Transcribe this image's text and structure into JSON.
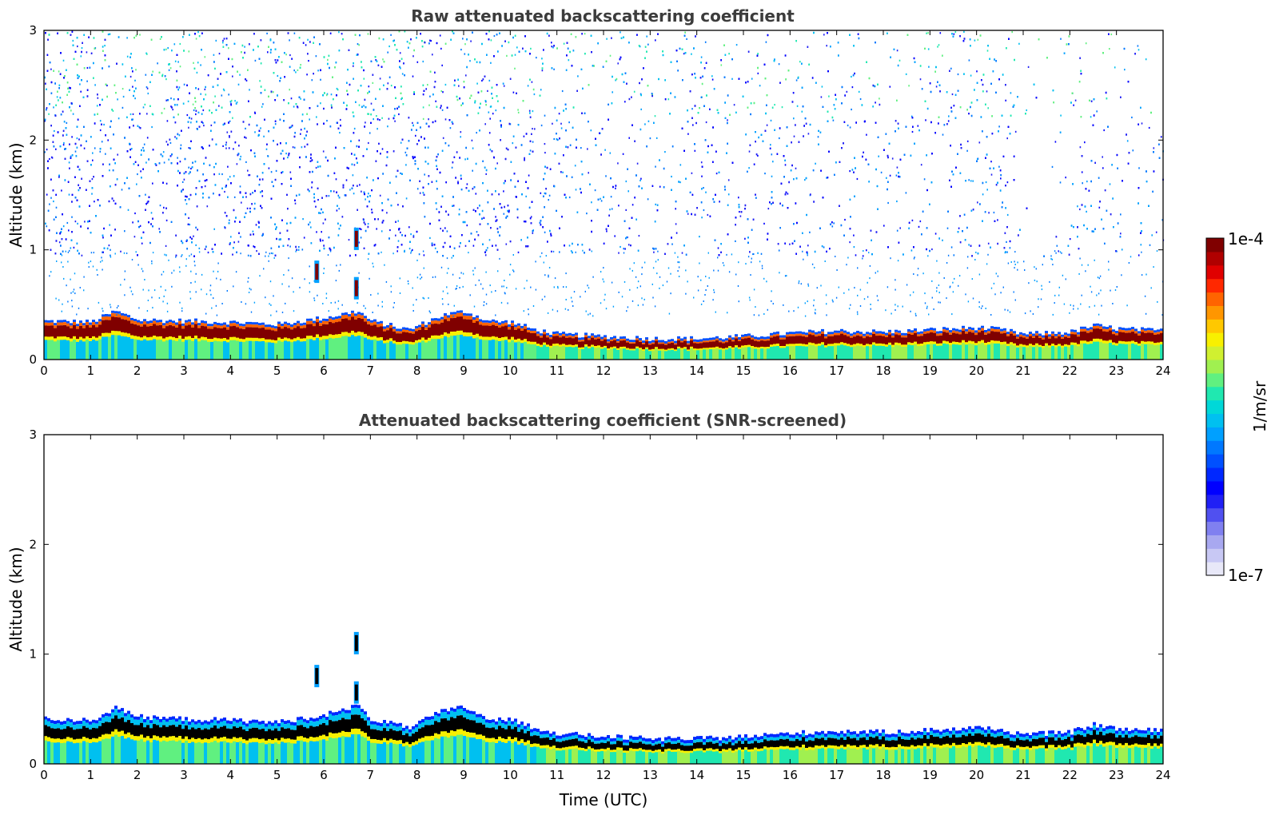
{
  "chart_data": [
    {
      "type": "heatmap",
      "title": "Raw attenuated backscattering coefficient",
      "xlabel": "",
      "ylabel": "Altitude (km)",
      "xlim": [
        0,
        24
      ],
      "ylim": [
        0,
        3
      ],
      "x_ticks": [
        "0",
        "1",
        "2",
        "3",
        "4",
        "5",
        "6",
        "7",
        "8",
        "9",
        "10",
        "11",
        "12",
        "13",
        "14",
        "15",
        "16",
        "17",
        "18",
        "19",
        "20",
        "21",
        "22",
        "23",
        "24"
      ],
      "y_ticks": [
        "0",
        "1",
        "2",
        "3"
      ],
      "variant": "raw",
      "boundary_layer_top_km": [
        {
          "t": 0,
          "h": 0.33
        },
        {
          "t": 1,
          "h": 0.32
        },
        {
          "t": 1.5,
          "h": 0.42
        },
        {
          "t": 2,
          "h": 0.34
        },
        {
          "t": 3,
          "h": 0.33
        },
        {
          "t": 4,
          "h": 0.32
        },
        {
          "t": 5,
          "h": 0.3
        },
        {
          "t": 6,
          "h": 0.36
        },
        {
          "t": 6.7,
          "h": 0.42
        },
        {
          "t": 7,
          "h": 0.33
        },
        {
          "t": 7.8,
          "h": 0.25
        },
        {
          "t": 8.5,
          "h": 0.38
        },
        {
          "t": 9,
          "h": 0.42
        },
        {
          "t": 9.5,
          "h": 0.33
        },
        {
          "t": 10,
          "h": 0.32
        },
        {
          "t": 10.5,
          "h": 0.25
        },
        {
          "t": 11,
          "h": 0.21
        },
        {
          "t": 12,
          "h": 0.19
        },
        {
          "t": 13,
          "h": 0.17
        },
        {
          "t": 14,
          "h": 0.17
        },
        {
          "t": 15,
          "h": 0.19
        },
        {
          "t": 16,
          "h": 0.22
        },
        {
          "t": 17,
          "h": 0.24
        },
        {
          "t": 18,
          "h": 0.23
        },
        {
          "t": 19,
          "h": 0.25
        },
        {
          "t": 20,
          "h": 0.27
        },
        {
          "t": 20.5,
          "h": 0.25
        },
        {
          "t": 21,
          "h": 0.21
        },
        {
          "t": 22,
          "h": 0.23
        },
        {
          "t": 22.5,
          "h": 0.29
        },
        {
          "t": 23,
          "h": 0.26
        },
        {
          "t": 24,
          "h": 0.24
        }
      ],
      "features": [
        {
          "t": 5.85,
          "h": 0.8
        },
        {
          "t": 6.7,
          "h": 1.1
        },
        {
          "t": 6.7,
          "h": 0.65
        }
      ]
    },
    {
      "type": "heatmap",
      "title": "Attenuated backscattering coefficient (SNR-screened)",
      "xlabel": "Time (UTC)",
      "ylabel": "Altitude (km)",
      "xlim": [
        0,
        24
      ],
      "ylim": [
        0,
        3
      ],
      "x_ticks": [
        "0",
        "1",
        "2",
        "3",
        "4",
        "5",
        "6",
        "7",
        "8",
        "9",
        "10",
        "11",
        "12",
        "13",
        "14",
        "15",
        "16",
        "17",
        "18",
        "19",
        "20",
        "21",
        "22",
        "23",
        "24"
      ],
      "y_ticks": [
        "0",
        "1",
        "2",
        "3"
      ],
      "variant": "screened",
      "boundary_layer_top_km": [
        {
          "t": 0,
          "h": 0.38
        },
        {
          "t": 1,
          "h": 0.37
        },
        {
          "t": 1.5,
          "h": 0.48
        },
        {
          "t": 2,
          "h": 0.4
        },
        {
          "t": 3,
          "h": 0.38
        },
        {
          "t": 4,
          "h": 0.37
        },
        {
          "t": 5,
          "h": 0.35
        },
        {
          "t": 6,
          "h": 0.42
        },
        {
          "t": 6.7,
          "h": 0.5
        },
        {
          "t": 7,
          "h": 0.38
        },
        {
          "t": 7.8,
          "h": 0.3
        },
        {
          "t": 8.5,
          "h": 0.45
        },
        {
          "t": 9,
          "h": 0.49
        },
        {
          "t": 9.5,
          "h": 0.38
        },
        {
          "t": 10,
          "h": 0.37
        },
        {
          "t": 10.5,
          "h": 0.3
        },
        {
          "t": 11,
          "h": 0.25
        },
        {
          "t": 12,
          "h": 0.22
        },
        {
          "t": 13,
          "h": 0.2
        },
        {
          "t": 14,
          "h": 0.2
        },
        {
          "t": 15,
          "h": 0.22
        },
        {
          "t": 16,
          "h": 0.25
        },
        {
          "t": 17,
          "h": 0.27
        },
        {
          "t": 18,
          "h": 0.26
        },
        {
          "t": 19,
          "h": 0.28
        },
        {
          "t": 20,
          "h": 0.3
        },
        {
          "t": 20.5,
          "h": 0.28
        },
        {
          "t": 21,
          "h": 0.24
        },
        {
          "t": 22,
          "h": 0.26
        },
        {
          "t": 22.5,
          "h": 0.33
        },
        {
          "t": 23,
          "h": 0.29
        },
        {
          "t": 24,
          "h": 0.27
        }
      ],
      "features": [
        {
          "t": 5.85,
          "h": 0.8
        },
        {
          "t": 6.7,
          "h": 1.1
        },
        {
          "t": 6.7,
          "h": 0.65
        }
      ]
    }
  ],
  "colorbar": {
    "label": "1/m/sr",
    "max_label": "1e-4",
    "min_label": "1e-7",
    "colors": [
      "#e8e8f8",
      "#c8c8f4",
      "#a8a8f0",
      "#8080f0",
      "#5050f0",
      "#2020f5",
      "#0000ff",
      "#0028ff",
      "#0050ff",
      "#0078ff",
      "#00a0ff",
      "#00c0f0",
      "#00d8d8",
      "#20e8b0",
      "#60f080",
      "#a0f050",
      "#d0f030",
      "#f8f000",
      "#ffc800",
      "#ff9600",
      "#ff6400",
      "#ff2800",
      "#e00000",
      "#b00000",
      "#800000"
    ]
  }
}
